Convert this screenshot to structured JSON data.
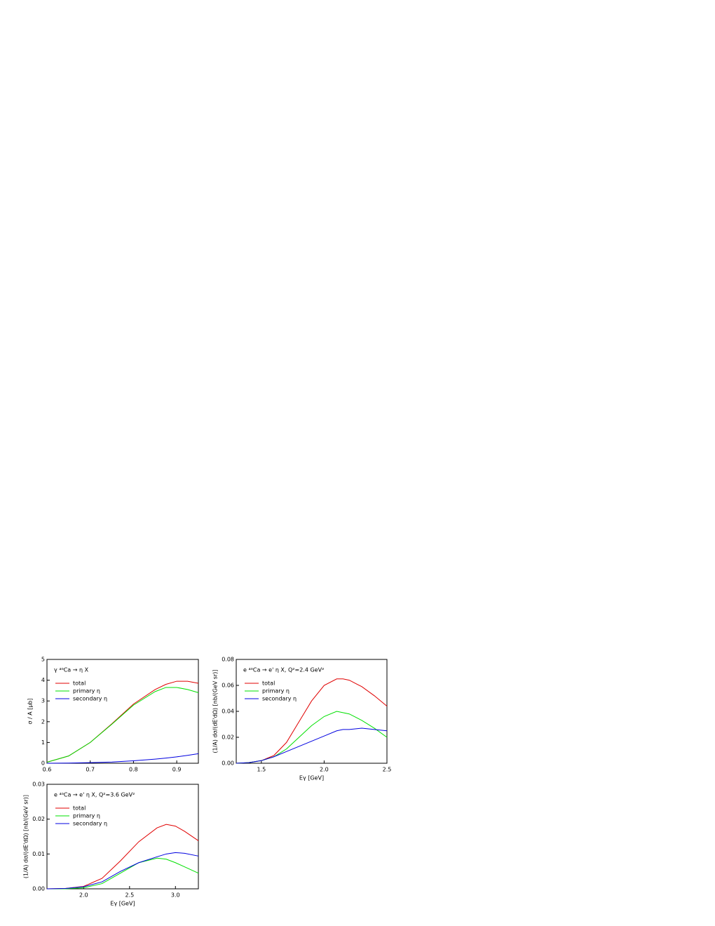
{
  "chart_data": [
    {
      "type": "line",
      "annotation": "γ ⁴⁰Ca → η X",
      "y_label": "σ / A [μb]",
      "x": [
        0.6,
        0.65,
        0.7,
        0.75,
        0.8,
        0.85,
        0.875,
        0.9,
        0.925,
        0.95
      ],
      "series": [
        {
          "name": "total",
          "color": "#e00000",
          "values": [
            0.05,
            0.35,
            1.0,
            1.9,
            2.85,
            3.55,
            3.8,
            3.95,
            3.95,
            3.85
          ]
        },
        {
          "name": "primary η",
          "color": "#00e000",
          "values": [
            0.05,
            0.35,
            1.0,
            1.88,
            2.8,
            3.45,
            3.65,
            3.65,
            3.55,
            3.4
          ]
        },
        {
          "name": "secondary η",
          "color": "#0000e0",
          "values": [
            0,
            0.01,
            0.03,
            0.06,
            0.12,
            0.2,
            0.25,
            0.31,
            0.38,
            0.46
          ]
        }
      ],
      "xlim": [
        0.6,
        0.95
      ],
      "xticks": [
        0.6,
        0.7,
        0.8,
        0.9
      ],
      "ylim": [
        0,
        5
      ],
      "yticks": [
        0,
        1,
        2,
        3,
        4,
        5
      ]
    },
    {
      "type": "line",
      "annotation": "e ⁴⁰Ca → e' η X, Q²=2.4 GeV²",
      "y_label": "(1/A) dσ/(dE'dΩ) [nb/(GeV sr)]",
      "x_label": "Eγ [GeV]",
      "x": [
        1.3,
        1.4,
        1.5,
        1.6,
        1.7,
        1.8,
        1.9,
        2.0,
        2.1,
        2.15,
        2.2,
        2.3,
        2.4,
        2.5
      ],
      "series": [
        {
          "name": "total",
          "color": "#e00000",
          "values": [
            0,
            0.0005,
            0.002,
            0.006,
            0.016,
            0.032,
            0.048,
            0.06,
            0.065,
            0.065,
            0.064,
            0.059,
            0.052,
            0.044
          ]
        },
        {
          "name": "primary η",
          "color": "#00e000",
          "values": [
            0,
            0.0005,
            0.002,
            0.005,
            0.011,
            0.02,
            0.029,
            0.036,
            0.04,
            0.039,
            0.038,
            0.033,
            0.027,
            0.02
          ]
        },
        {
          "name": "secondary η",
          "color": "#0000e0",
          "values": [
            0,
            0.0005,
            0.002,
            0.005,
            0.009,
            0.013,
            0.017,
            0.021,
            0.025,
            0.026,
            0.026,
            0.027,
            0.026,
            0.025
          ]
        }
      ],
      "xlim": [
        1.3,
        2.5
      ],
      "xticks": [
        1.5,
        {
          "value": 2,
          "label": "2.0"
        },
        2.5
      ],
      "ylim": [
        0,
        0.08
      ],
      "yticks": [
        {
          "value": 0,
          "label": "0.00"
        },
        0.02,
        0.04,
        0.06,
        0.08
      ]
    },
    {
      "type": "line",
      "annotation": "e ⁴⁰Ca → e' η X, Q²=3.6 GeV²",
      "y_label": "(1/A) dσ/(dE'dΩ) [nb/(GeV sr)]",
      "x_label": "Eγ [GeV]",
      "x": [
        1.6,
        1.8,
        2.0,
        2.2,
        2.4,
        2.6,
        2.8,
        2.9,
        3.0,
        3.1,
        3.25
      ],
      "series": [
        {
          "name": "total",
          "color": "#e00000",
          "values": [
            0,
            0.0001,
            0.0007,
            0.003,
            0.008,
            0.0135,
            0.0175,
            0.0185,
            0.018,
            0.0165,
            0.0138
          ]
        },
        {
          "name": "primary η",
          "color": "#00e000",
          "values": [
            0,
            0,
            0.0003,
            0.0015,
            0.0045,
            0.0075,
            0.0088,
            0.0085,
            0.0075,
            0.0063,
            0.0045
          ]
        },
        {
          "name": "secondary η",
          "color": "#0000e0",
          "values": [
            0,
            0.0001,
            0.0006,
            0.002,
            0.005,
            0.0075,
            0.0092,
            0.01,
            0.0104,
            0.0102,
            0.0094
          ]
        }
      ],
      "xlim": [
        1.6,
        3.25
      ],
      "xticks": [
        {
          "value": 2,
          "label": "2.0"
        },
        2.5,
        {
          "value": 3,
          "label": "3.0"
        }
      ],
      "ylim": [
        0,
        0.03
      ],
      "yticks": [
        {
          "value": 0,
          "label": "0.00"
        },
        0.01,
        0.02,
        0.03
      ]
    }
  ]
}
